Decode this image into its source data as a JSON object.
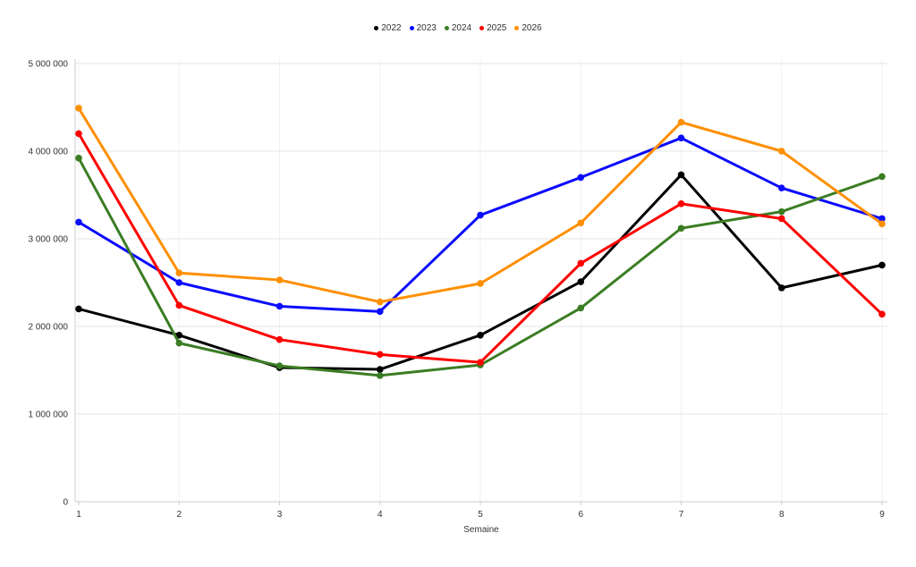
{
  "chart_data": {
    "type": "line",
    "title": "",
    "xlabel": "Semaine",
    "ylabel": "",
    "legend_position": "top-center",
    "grid": true,
    "x": [
      1,
      2,
      3,
      4,
      5,
      6,
      7,
      8,
      9
    ],
    "ylim": [
      0,
      5000000
    ],
    "y_ticks": [
      {
        "value": 0,
        "label": "0"
      },
      {
        "value": 1000000,
        "label": "1 000 000"
      },
      {
        "value": 2000000,
        "label": "2 000 000"
      },
      {
        "value": 3000000,
        "label": "3 000 000"
      },
      {
        "value": 4000000,
        "label": "4 000 000"
      },
      {
        "value": 5000000,
        "label": "5 000 000"
      }
    ],
    "series": [
      {
        "name": "2022",
        "color": "#000000",
        "values": [
          2200000,
          1900000,
          1530000,
          1510000,
          1900000,
          2510000,
          3730000,
          2440000,
          2700000
        ]
      },
      {
        "name": "2023",
        "color": "#0b0bff",
        "values": [
          3190000,
          2500000,
          2230000,
          2170000,
          3270000,
          3700000,
          4150000,
          3580000,
          3230000
        ]
      },
      {
        "name": "2024",
        "color": "#3b7d23",
        "values": [
          3920000,
          1810000,
          1550000,
          1440000,
          1560000,
          2210000,
          3120000,
          3310000,
          3710000
        ]
      },
      {
        "name": "2025",
        "color": "#ff0000",
        "values": [
          4200000,
          2240000,
          1850000,
          1680000,
          1590000,
          2720000,
          3400000,
          3230000,
          2140000
        ]
      },
      {
        "name": "2026",
        "color": "#ff8f00",
        "values": [
          4490000,
          2610000,
          2530000,
          2280000,
          2490000,
          3180000,
          4330000,
          4000000,
          3170000
        ]
      }
    ]
  },
  "colors": {
    "axis": "#cccccc",
    "hgrid": "#e6e6e6",
    "vgrid": "#f2f2f2",
    "tick_text": "#333333"
  }
}
